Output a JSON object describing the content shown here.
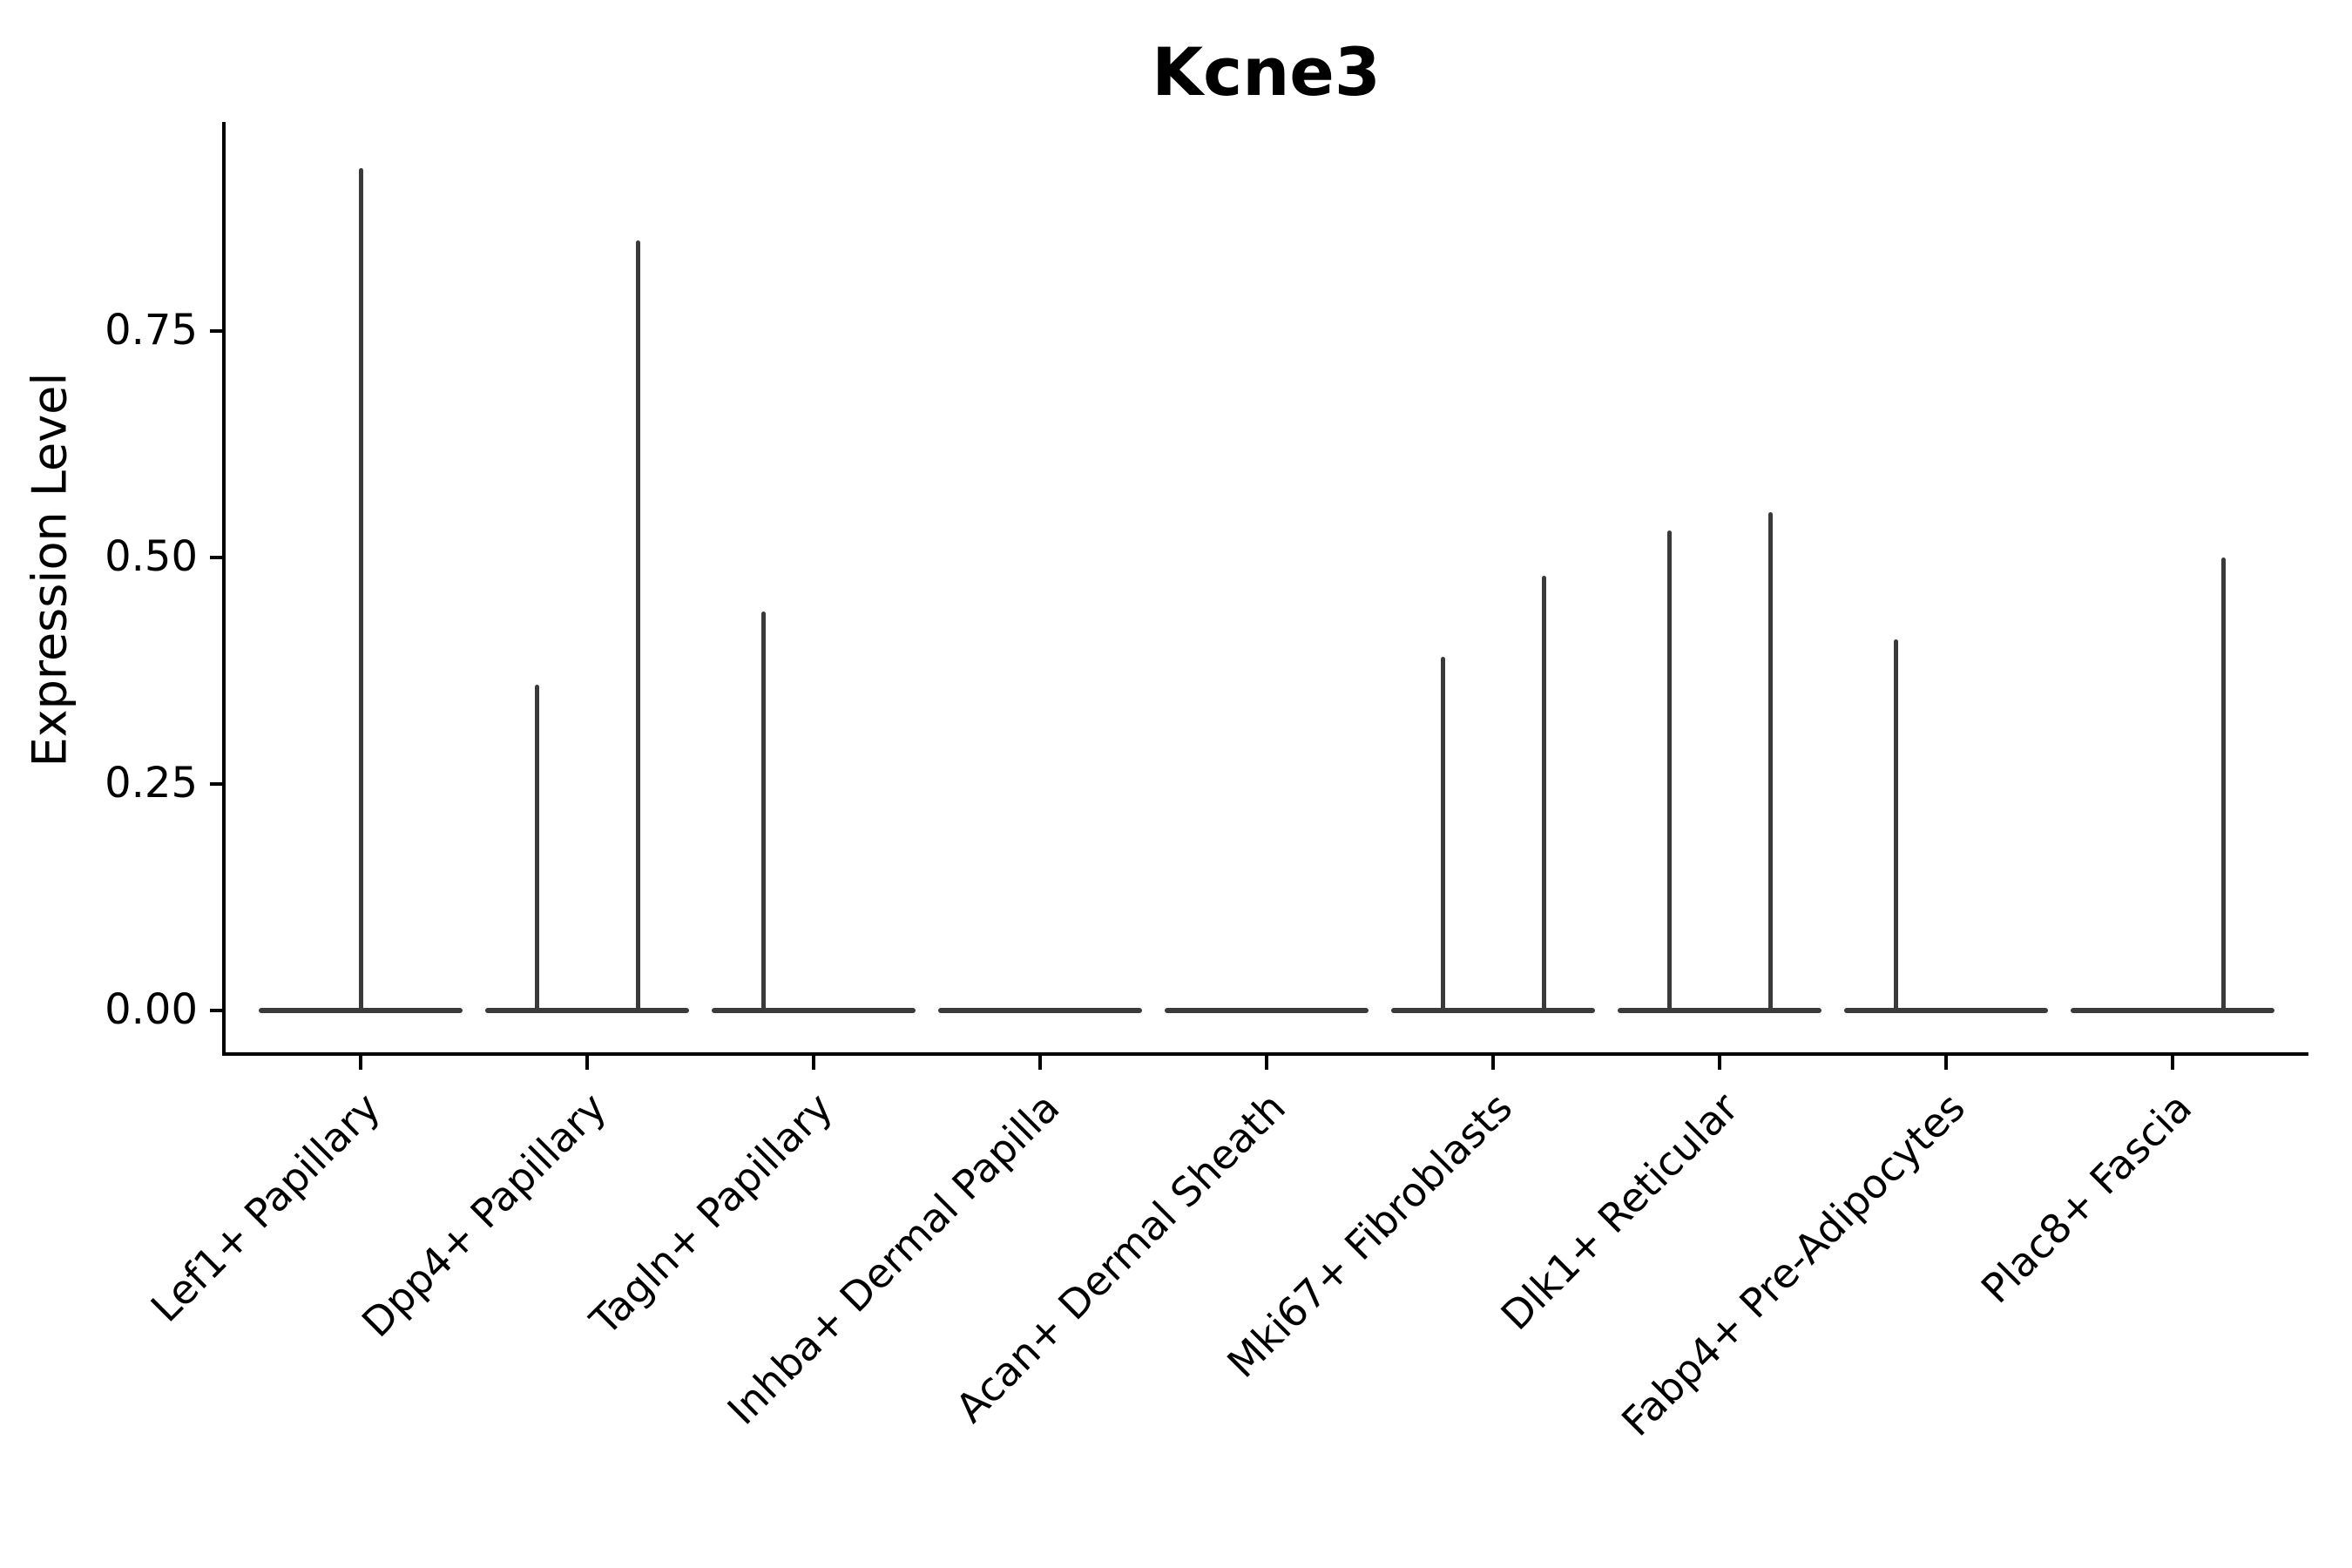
{
  "figure": {
    "title": "Kcne3",
    "y_axis_label": "Expression Level"
  },
  "chart_data": {
    "type": "violin",
    "title": "Kcne3",
    "xlabel": "",
    "ylabel": "Expression Level",
    "ylim": [
      -0.05,
      0.98
    ],
    "grid": false,
    "legend": "none",
    "y_ticks": [
      {
        "label": "0.00",
        "value": 0.0
      },
      {
        "label": "0.25",
        "value": 0.25
      },
      {
        "label": "0.50",
        "value": 0.5
      },
      {
        "label": "0.75",
        "value": 0.75
      }
    ],
    "categories": [
      "Lef1+ Papillary",
      "Dpp4+ Papillary",
      "Tagln+ Papillary",
      "Inhba+ Dermal Papilla",
      "Acan+ Dermal Sheath",
      "Mki67+ Fibroblasts",
      "Dlk1+ Reticular",
      "Fabp4+ Pre-Adipocytes",
      "Plac8+ Fascia"
    ],
    "violins": [
      {
        "category": "Lef1+ Papillary",
        "baseline": 0.0,
        "spikes": [
          {
            "position": "center",
            "max_expression": 0.93
          }
        ]
      },
      {
        "category": "Dpp4+ Papillary",
        "baseline": 0.0,
        "spikes": [
          {
            "position": "left",
            "max_expression": 0.36
          },
          {
            "position": "right",
            "max_expression": 0.85
          }
        ]
      },
      {
        "category": "Tagln+ Papillary",
        "baseline": 0.0,
        "spikes": [
          {
            "position": "left",
            "max_expression": 0.44
          }
        ]
      },
      {
        "category": "Inhba+ Dermal Papilla",
        "baseline": 0.0,
        "spikes": []
      },
      {
        "category": "Acan+ Dermal Sheath",
        "baseline": 0.0,
        "spikes": []
      },
      {
        "category": "Mki67+ Fibroblasts",
        "baseline": 0.0,
        "spikes": [
          {
            "position": "left",
            "max_expression": 0.39
          },
          {
            "position": "right",
            "max_expression": 0.48
          }
        ]
      },
      {
        "category": "Dlk1+ Reticular",
        "baseline": 0.0,
        "spikes": [
          {
            "position": "left",
            "max_expression": 0.53
          },
          {
            "position": "right",
            "max_expression": 0.55
          }
        ]
      },
      {
        "category": "Fabp4+ Pre-Adipocytes",
        "baseline": 0.0,
        "spikes": [
          {
            "position": "left",
            "max_expression": 0.41
          }
        ]
      },
      {
        "category": "Plac8+ Fascia",
        "baseline": 0.0,
        "spikes": [
          {
            "position": "right",
            "max_expression": 0.5
          }
        ]
      }
    ],
    "colors": {
      "violin": "#3a3a3a",
      "axis": "#000000",
      "background": "#ffffff"
    }
  }
}
